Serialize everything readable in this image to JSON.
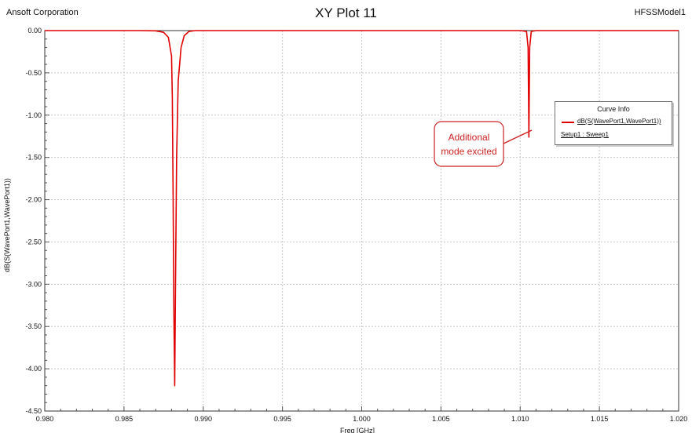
{
  "header": {
    "left_text": "Ansoft Corporation",
    "title": "XY Plot 11",
    "right_text": "HFSSModel1"
  },
  "legend": {
    "title": "Curve Info",
    "expression": "dB(S(WavePort1,WavePort1))",
    "setup": "Setup1 : Sweep1"
  },
  "annotation": {
    "line1": "Additional",
    "line2": "mode excited"
  },
  "colors": {
    "curve": "#e00000",
    "grid": "#c8c8c8",
    "annotation_border": "#cc2222",
    "annotation_text": "#cc2222"
  },
  "chart_data": {
    "type": "line",
    "title": "XY Plot 11",
    "xlabel": "Freq [GHz]",
    "ylabel": "dB(S(WavePort1,WavePort1))",
    "xlim": [
      0.98,
      1.02
    ],
    "ylim": [
      -4.5,
      0.0
    ],
    "x_ticks": [
      "0.980",
      "0.985",
      "0.990",
      "0.995",
      "1.000",
      "1.005",
      "1.010",
      "1.015",
      "1.020"
    ],
    "y_ticks": [
      "0.00",
      "-0.50",
      "-1.00",
      "-1.50",
      "-2.00",
      "-2.50",
      "-3.00",
      "-3.50",
      "-4.00",
      "-4.50"
    ],
    "grid": true,
    "legend_position": "right",
    "series": [
      {
        "name": "dB(S(WavePort1,WavePort1))",
        "points": [
          [
            0.98,
            0.0
          ],
          [
            0.986,
            0.0
          ],
          [
            0.987,
            -0.003
          ],
          [
            0.9875,
            -0.02
          ],
          [
            0.9878,
            -0.08
          ],
          [
            0.988,
            -0.3
          ],
          [
            0.98805,
            -0.8
          ],
          [
            0.9881,
            -2.0
          ],
          [
            0.98815,
            -3.4
          ],
          [
            0.9882,
            -4.2
          ],
          [
            0.98825,
            -3.0
          ],
          [
            0.98832,
            -1.5
          ],
          [
            0.98842,
            -0.6
          ],
          [
            0.9886,
            -0.2
          ],
          [
            0.9888,
            -0.06
          ],
          [
            0.9891,
            -0.01
          ],
          [
            0.9895,
            0.0
          ],
          [
            1.01,
            0.0
          ],
          [
            1.0104,
            -0.01
          ],
          [
            1.0105,
            -0.2
          ],
          [
            1.01055,
            -1.26
          ],
          [
            1.0106,
            -0.2
          ],
          [
            1.0107,
            -0.01
          ],
          [
            1.011,
            0.0
          ],
          [
            1.02,
            0.0
          ]
        ]
      }
    ]
  }
}
